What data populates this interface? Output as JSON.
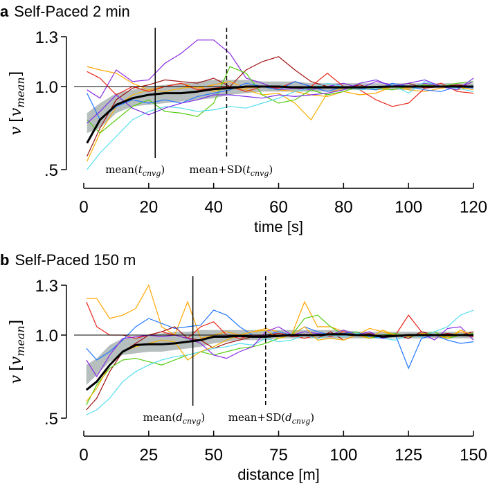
{
  "chart_data": [
    {
      "type": "line",
      "panel_letter": "a",
      "title": "Self-Paced 2 min",
      "xlabel": "time [s]",
      "ylabel_main": "v",
      "ylabel_sub": "mean",
      "ylabel_v": "v",
      "xlim": [
        0,
        120
      ],
      "ylim": [
        0.5,
        1.3
      ],
      "xticks": [
        0,
        20,
        40,
        60,
        80,
        100,
        120
      ],
      "xtick_labels": [
        "0",
        "20",
        "40",
        "60",
        "80",
        "100",
        "120"
      ],
      "yticks": [
        0.5,
        1.0,
        1.3
      ],
      "ytick_labels": [
        ".5",
        "1.0",
        "1.3"
      ],
      "reference_line": 1.0,
      "vlines": [
        {
          "x": 22,
          "style": "solid",
          "label_main": "mean(",
          "label_var": "t",
          "label_sub": "cnvg",
          "label_end": ")"
        },
        {
          "x": 44,
          "style": "dashed",
          "label_main": "mean+SD(",
          "label_var": "t",
          "label_sub": "cnvg",
          "label_end": ")"
        }
      ],
      "x": [
        1,
        5,
        10,
        15,
        20,
        25,
        30,
        35,
        40,
        45,
        50,
        55,
        60,
        65,
        70,
        75,
        80,
        85,
        90,
        95,
        100,
        105,
        110,
        115,
        120
      ],
      "mean": [
        0.66,
        0.8,
        0.89,
        0.93,
        0.95,
        0.96,
        0.96,
        0.97,
        0.985,
        0.99,
        1.0,
        1.0,
        1.0,
        0.995,
        0.995,
        0.995,
        0.995,
        0.995,
        0.998,
        1.0,
        1.0,
        1.0,
        1.0,
        1.0,
        1.0
      ],
      "band_lower": [
        0.72,
        0.75,
        0.84,
        0.88,
        0.89,
        0.9,
        0.91,
        0.92,
        0.93,
        0.95,
        0.96,
        0.97,
        0.97,
        0.97,
        0.97,
        0.97,
        0.98,
        0.98,
        0.98,
        0.98,
        0.98,
        0.99,
        0.99,
        0.99,
        0.99
      ],
      "band_upper": [
        0.84,
        0.9,
        0.96,
        0.98,
        1.0,
        1.01,
        1.02,
        1.03,
        1.04,
        1.04,
        1.04,
        1.03,
        1.03,
        1.03,
        1.02,
        1.02,
        1.02,
        1.02,
        1.02,
        1.02,
        1.02,
        1.02,
        1.02,
        1.02,
        1.02
      ],
      "series": [
        {
          "color": "#8a2be2",
          "values": [
            0.98,
            0.93,
            1.1,
            1.03,
            1.04,
            1.14,
            1.2,
            1.28,
            1.28,
            1.2,
            1.05,
            1.02,
            0.98,
            0.99,
            0.98,
            1.0,
            1.02,
            0.99,
            1.03,
            1.01,
            0.99,
            1.02,
            1.0,
            0.99,
            1.03
          ]
        },
        {
          "color": "#a01010",
          "values": [
            0.58,
            0.75,
            0.92,
            0.99,
            1.01,
            1.04,
            1.03,
            1.02,
            1.05,
            1.0,
            1.1,
            1.15,
            1.18,
            1.1,
            1.03,
            1.0,
            0.99,
            1.01,
            0.98,
            1.0,
            1.02,
            0.99,
            1.0,
            1.01,
            1.0
          ]
        },
        {
          "color": "#ffa500",
          "values": [
            1.12,
            1.1,
            1.08,
            1.02,
            0.98,
            1.0,
            1.02,
            0.99,
            1.01,
            1.03,
            0.99,
            1.0,
            0.98,
            0.97,
            0.95,
            0.94,
            0.97,
            0.95,
            0.96,
            1.0,
            0.98,
            0.97,
            0.99,
            1.0,
            0.98
          ]
        },
        {
          "color": "#f5b000",
          "values": [
            0.55,
            0.72,
            0.88,
            0.95,
            0.98,
            0.97,
            0.99,
            1.0,
            0.97,
            1.0,
            0.98,
            0.95,
            0.96,
            0.9,
            0.8,
            0.96,
            0.99,
            1.0,
            0.98,
            1.0,
            0.99,
            1.01,
            1.0,
            0.98,
            1.0
          ]
        },
        {
          "color": "#e8251a",
          "values": [
            1.09,
            1.05,
            0.95,
            1.0,
            0.97,
            1.0,
            1.02,
            0.98,
            0.99,
            1.0,
            0.97,
            1.0,
            0.99,
            1.03,
            1.0,
            1.08,
            1.0,
            0.98,
            0.92,
            0.88,
            0.9,
            0.99,
            1.02,
            0.97,
            0.96
          ]
        },
        {
          "color": "#55cc11",
          "values": [
            0.8,
            0.72,
            0.8,
            0.88,
            0.92,
            0.85,
            0.84,
            0.82,
            0.9,
            1.12,
            1.08,
            0.95,
            0.9,
            0.92,
            0.98,
            0.95,
            0.97,
            1.0,
            0.99,
            0.98,
            1.0,
            1.01,
            1.0,
            1.02,
            1.03
          ]
        },
        {
          "color": "#2277ff",
          "values": [
            0.96,
            0.8,
            0.88,
            0.92,
            0.9,
            0.92,
            0.9,
            0.94,
            0.96,
            0.98,
            1.02,
            1.0,
            0.98,
            1.03,
            1.0,
            0.97,
            1.0,
            0.99,
            0.98,
            1.02,
            1.0,
            0.98,
            0.97,
            1.0,
            0.99
          ]
        },
        {
          "color": "#55ddee",
          "values": [
            0.5,
            0.6,
            0.7,
            0.8,
            0.85,
            0.88,
            0.87,
            0.85,
            0.86,
            0.88,
            0.87,
            0.9,
            0.93,
            0.97,
            0.99,
            1.02,
            1.0,
            0.98,
            0.99,
            1.01,
            0.96,
            1.03,
            1.0,
            0.99,
            0.97
          ]
        },
        {
          "color": "#7a2ee8",
          "values": [
            0.78,
            0.85,
            0.95,
            0.87,
            0.83,
            0.87,
            0.9,
            0.92,
            0.95,
            0.95,
            0.94,
            0.93,
            0.95,
            0.94,
            0.95,
            0.96,
            0.98,
            1.02,
            1.04,
            1.0,
            1.02,
            1.04,
            1.0,
            0.98,
            1.05
          ]
        }
      ]
    },
    {
      "type": "line",
      "panel_letter": "b",
      "title": "Self-Paced 150 m",
      "xlabel": "distance [m]",
      "ylabel_main": "v",
      "ylabel_sub": "mean",
      "ylabel_v": "v",
      "xlim": [
        0,
        150
      ],
      "ylim": [
        0.5,
        1.3
      ],
      "xticks": [
        0,
        25,
        50,
        75,
        100,
        125,
        150
      ],
      "xtick_labels": [
        "0",
        "25",
        "50",
        "75",
        "100",
        "125",
        "150"
      ],
      "yticks": [
        0.5,
        1.0,
        1.3
      ],
      "ytick_labels": [
        ".5",
        "1.0",
        "1.3"
      ],
      "reference_line": 1.0,
      "vlines": [
        {
          "x": 42,
          "style": "solid",
          "label_main": "mean(",
          "label_var": "d",
          "label_sub": "cnvg",
          "label_end": ")"
        },
        {
          "x": 70,
          "style": "dashed",
          "label_main": "mean+SD(",
          "label_var": "d",
          "label_sub": "cnvg",
          "label_end": ")"
        }
      ],
      "x": [
        1,
        5,
        10,
        15,
        20,
        25,
        30,
        35,
        40,
        45,
        50,
        55,
        60,
        65,
        70,
        75,
        80,
        85,
        90,
        95,
        100,
        105,
        110,
        115,
        120,
        125,
        130,
        135,
        140,
        145,
        150
      ],
      "mean": [
        0.67,
        0.72,
        0.82,
        0.9,
        0.94,
        0.945,
        0.945,
        0.95,
        0.96,
        0.97,
        0.99,
        0.99,
        0.995,
        0.99,
        0.99,
        0.995,
        1.0,
        1.0,
        1.0,
        1.005,
        1.005,
        1.0,
        1.0,
        0.99,
        0.995,
        1.0,
        1.0,
        1.0,
        1.0,
        1.0,
        1.0
      ],
      "band_lower": [
        0.7,
        0.76,
        0.84,
        0.88,
        0.89,
        0.9,
        0.9,
        0.91,
        0.92,
        0.93,
        0.95,
        0.96,
        0.97,
        0.97,
        0.97,
        0.98,
        0.98,
        0.98,
        0.98,
        0.98,
        0.98,
        0.98,
        0.98,
        0.98,
        0.98,
        0.98,
        0.98,
        0.98,
        0.98,
        0.98,
        0.98
      ],
      "band_upper": [
        0.82,
        0.86,
        0.94,
        0.98,
        0.99,
        1.0,
        1.01,
        1.02,
        1.02,
        1.03,
        1.03,
        1.03,
        1.03,
        1.03,
        1.03,
        1.03,
        1.03,
        1.03,
        1.03,
        1.03,
        1.03,
        1.02,
        1.02,
        1.02,
        1.02,
        1.02,
        1.02,
        1.02,
        1.02,
        1.02,
        1.02
      ],
      "series": [
        {
          "color": "#ffa500",
          "values": [
            1.22,
            1.22,
            1.1,
            1.12,
            1.16,
            1.3,
            1.05,
            1.0,
            1.2,
            0.98,
            1.0,
            1.02,
            1.0,
            1.02,
            1.04,
            1.02,
            1.0,
            1.2,
            1.05,
            1.05,
            1.02,
            1.0,
            1.04,
            1.02,
            1.0,
            0.99,
            1.01,
            1.0,
            0.99,
            1.02,
            1.0
          ]
        },
        {
          "color": "#e8251a",
          "values": [
            1.2,
            1.05,
            1.0,
            1.0,
            0.98,
            1.0,
            1.02,
            1.0,
            0.98,
            1.05,
            1.08,
            1.0,
            0.98,
            1.0,
            0.99,
            1.01,
            1.0,
            0.98,
            1.0,
            0.99,
            1.02,
            1.0,
            0.98,
            1.0,
            1.0,
            1.12,
            1.02,
            1.0,
            0.98,
            1.0,
            0.99
          ]
        },
        {
          "color": "#2277ff",
          "values": [
            0.92,
            0.85,
            0.9,
            0.97,
            1.05,
            1.1,
            1.07,
            1.04,
            1.05,
            1.06,
            1.15,
            1.12,
            1.05,
            1.0,
            1.0,
            1.02,
            1.0,
            1.05,
            1.02,
            1.0,
            1.01,
            1.02,
            0.99,
            0.98,
            1.0,
            0.8,
            0.98,
            1.0,
            0.97,
            0.95,
            0.96
          ]
        },
        {
          "color": "#a01010",
          "values": [
            0.55,
            0.62,
            0.78,
            0.9,
            0.95,
            1.0,
            1.02,
            1.05,
            0.98,
            0.97,
            0.92,
            0.95,
            0.97,
            0.99,
            1.0,
            1.01,
            0.99,
            1.0,
            0.98,
            1.02,
            0.97,
            1.0,
            1.01,
            0.99,
            1.0,
            0.98,
            1.02,
            1.0,
            1.01,
            1.0,
            1.02
          ]
        },
        {
          "color": "#55cc11",
          "values": [
            0.58,
            0.7,
            0.8,
            0.85,
            0.86,
            0.84,
            0.82,
            0.85,
            0.88,
            0.9,
            0.88,
            0.9,
            0.92,
            0.93,
            0.95,
            0.98,
            1.0,
            1.1,
            1.12,
            1.05,
            1.0,
            1.02,
            0.98,
            1.0,
            1.01,
            0.99,
            1.0,
            1.02,
            0.98,
            1.0,
            1.01
          ]
        },
        {
          "color": "#55ddee",
          "values": [
            0.52,
            0.55,
            0.62,
            0.72,
            0.78,
            0.82,
            0.85,
            0.87,
            0.88,
            0.9,
            0.92,
            0.93,
            0.95,
            0.94,
            0.98,
            0.96,
            0.97,
            1.0,
            0.98,
            1.0,
            0.99,
            1.01,
            1.0,
            0.98,
            0.97,
            1.0,
            0.99,
            1.02,
            1.05,
            1.12,
            1.15
          ]
        },
        {
          "color": "#8a2be2",
          "values": [
            0.85,
            0.75,
            0.88,
            0.98,
            0.99,
            1.0,
            0.99,
            1.0,
            0.98,
            0.95,
            0.88,
            0.86,
            0.9,
            0.93,
            1.02,
            1.05,
            1.0,
            1.02,
            1.01,
            1.0,
            1.03,
            1.0,
            1.02,
            0.98,
            1.0,
            0.99,
            1.01,
            0.97,
            1.04,
            1.05,
            0.97
          ]
        },
        {
          "color": "#f5b000",
          "values": [
            0.6,
            0.68,
            0.82,
            0.9,
            0.93,
            0.95,
            0.97,
            0.96,
            0.85,
            0.9,
            0.93,
            0.97,
            1.0,
            1.02,
            1.03,
            0.98,
            1.0,
            1.05,
            0.97,
            0.98,
            0.97,
            1.0,
            0.98,
            1.03,
            1.0,
            0.99,
            1.01,
            1.0,
            0.98,
            1.03,
            1.0
          ]
        }
      ]
    }
  ],
  "colors": {
    "band": "#a9b3b3",
    "mean": "#000000"
  }
}
